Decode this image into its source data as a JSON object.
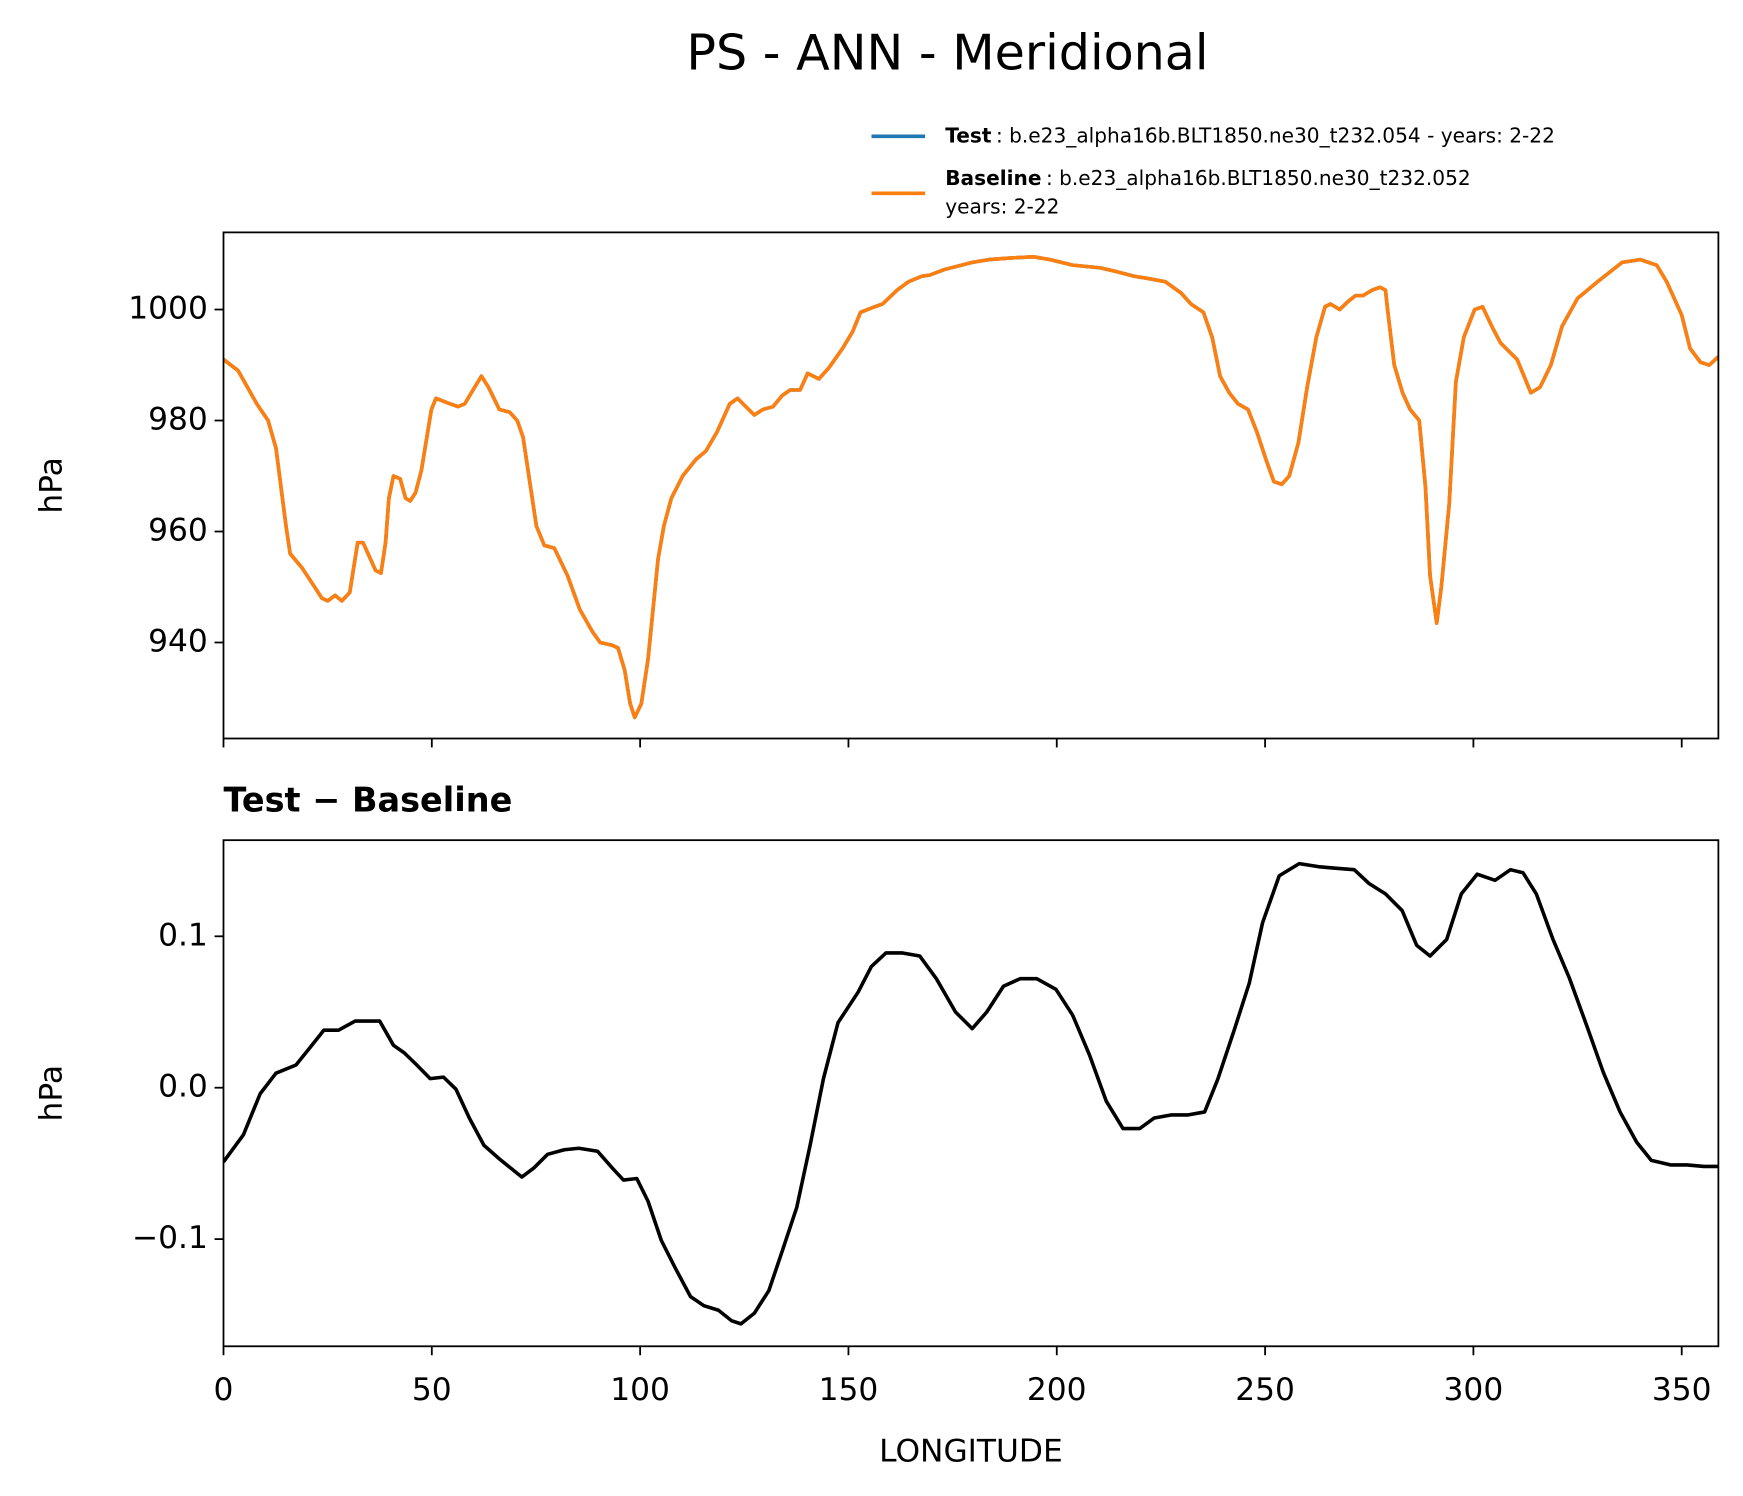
{
  "chart_data": [
    {
      "type": "line",
      "title": "PS - ANN - Meridional",
      "ylabel": "hPa",
      "xlim": [
        0,
        358.8
      ],
      "ylim": [
        922.7,
        1013.9
      ],
      "yticks": [
        940,
        960,
        980,
        1000
      ],
      "legend": "upper right",
      "x": [
        0,
        3.5,
        8,
        10.7,
        12.6,
        15,
        16,
        18.8,
        21,
        23.6,
        25,
        26.8,
        28.4,
        30.3,
        32.2,
        33.5,
        36.5,
        37.8,
        38.9,
        39.7,
        40.8,
        42.4,
        43.7,
        44.8,
        46.1,
        47.5,
        49.9,
        51,
        54.4,
        56.3,
        57.9,
        60.3,
        61.9,
        63.6,
        66.2,
        68.7,
        70.5,
        71.9,
        73.7,
        75.1,
        77,
        79.4,
        82.6,
        85.5,
        88.5,
        90.4,
        93.3,
        94.7,
        96.3,
        97.6,
        98.7,
        100.3,
        101.9,
        104.3,
        105.7,
        107.5,
        110.2,
        113.4,
        115.8,
        118.5,
        121.5,
        123.4,
        124.7,
        127.4,
        129.5,
        131.9,
        134.1,
        136,
        138.4,
        140.2,
        142.9,
        145.3,
        148.6,
        151,
        152.9,
        156.3,
        158.2,
        161.7,
        164.4,
        167.6,
        169.5,
        173,
        175.6,
        179.7,
        183.7,
        189.1,
        194.4,
        198.4,
        203.8,
        210.5,
        214.5,
        218.6,
        222.6,
        226.1,
        229.8,
        232.2,
        235.2,
        237.3,
        239.2,
        241.4,
        243.5,
        245.9,
        248,
        250.2,
        252.1,
        254,
        255.8,
        258,
        260.1,
        262.3,
        264.4,
        265.7,
        267.9,
        270,
        271.7,
        273.5,
        275.7,
        277.6,
        278.9,
        279.4,
        281,
        283,
        284.8,
        287,
        288.5,
        289.6,
        291.2,
        292.3,
        294.2,
        295.8,
        297.7,
        300.3,
        302.2,
        304.4,
        306.5,
        310.5,
        313.8,
        316,
        318.6,
        321.3,
        325,
        329.8,
        335.7,
        340,
        344,
        346.4,
        350,
        352,
        354.5,
        356.6,
        358.8
      ],
      "series": [
        {
          "name": "Test",
          "description": [
            ": b.e23_alpha16b.BLT1850.ne30_t232.054 - years: 2-22"
          ],
          "color": "#1f77b4",
          "values": [
            991,
            989,
            983,
            980,
            975,
            961,
            956,
            953.5,
            951,
            948,
            947.5,
            948.5,
            947.5,
            949,
            958,
            958,
            953,
            952.5,
            958,
            966,
            970,
            969.5,
            966,
            965.5,
            967,
            971,
            982,
            984,
            983,
            982.5,
            983,
            986,
            988,
            986,
            982,
            981.5,
            980,
            977,
            968,
            961,
            957.5,
            957,
            952,
            946,
            942,
            940,
            939.5,
            939,
            935,
            929,
            926.5,
            929,
            937,
            955,
            961,
            966,
            970,
            973,
            974.5,
            978,
            983,
            984,
            983,
            981,
            982,
            982.5,
            984.5,
            985.5,
            985.5,
            988.5,
            987.5,
            989.5,
            993,
            996,
            999.5,
            1000.5,
            1001,
            1003.5,
            1005,
            1006,
            1006.2,
            1007.2,
            1007.7,
            1008.5,
            1009,
            1009.3,
            1009.5,
            1009,
            1008,
            1007.5,
            1006.8,
            1006,
            1005.5,
            1005,
            1003,
            1001,
            999.5,
            995,
            988,
            985,
            983,
            982,
            978,
            973,
            969,
            968.5,
            970,
            976,
            986,
            995,
            1000.5,
            1001,
            1000,
            1001.5,
            1002.5,
            1002.5,
            1003.5,
            1004,
            1003.5,
            1000,
            990,
            985,
            982,
            980,
            968,
            952,
            943.5,
            950,
            965,
            987,
            995,
            1000,
            1000.5,
            997,
            994,
            991,
            985,
            986,
            990,
            997,
            1002,
            1005,
            1008.5,
            1009,
            1008,
            1005,
            999,
            993,
            990.5,
            990,
            991.5
          ]
        },
        {
          "name": "Baseline",
          "description": [
            ": b.e23_alpha16b.BLT1850.ne30_t232.052",
            "years: 2-22"
          ],
          "color": "#ff7f0e",
          "values": [
            991,
            989,
            983,
            980,
            975,
            961,
            956,
            953.5,
            951,
            948,
            947.5,
            948.5,
            947.5,
            949,
            958,
            958,
            953,
            952.5,
            958,
            966,
            970,
            969.5,
            966,
            965.5,
            967,
            971,
            982,
            984,
            983,
            982.5,
            983,
            986,
            988,
            986,
            982,
            981.5,
            980,
            977,
            968,
            961,
            957.5,
            957,
            952,
            946,
            942,
            940,
            939.5,
            939,
            935,
            929,
            926.5,
            929,
            937,
            955,
            961,
            966,
            970,
            973,
            974.5,
            978,
            983,
            984,
            983,
            981,
            982,
            982.5,
            984.5,
            985.5,
            985.5,
            988.5,
            987.5,
            989.5,
            993,
            996,
            999.5,
            1000.5,
            1001,
            1003.5,
            1005,
            1006,
            1006.2,
            1007.2,
            1007.7,
            1008.5,
            1009,
            1009.3,
            1009.5,
            1009,
            1008,
            1007.5,
            1006.8,
            1006,
            1005.5,
            1005,
            1003,
            1001,
            999.5,
            995,
            988,
            985,
            983,
            982,
            978,
            973,
            969,
            968.5,
            970,
            976,
            986,
            995,
            1000.5,
            1001,
            1000,
            1001.5,
            1002.5,
            1002.5,
            1003.5,
            1004,
            1003.5,
            1000,
            990,
            985,
            982,
            980,
            968,
            952,
            943.5,
            950,
            965,
            987,
            995,
            1000,
            1000.5,
            997,
            994,
            991,
            985,
            986,
            990,
            997,
            1002,
            1005,
            1008.5,
            1009,
            1008,
            1005,
            999,
            993,
            990.5,
            990,
            991.5
          ]
        }
      ]
    },
    {
      "type": "line",
      "title": "Test − Baseline",
      "xlabel": "LONGITUDE",
      "ylabel": "hPa",
      "xlim": [
        0,
        358.8
      ],
      "ylim": [
        -0.1708,
        0.1635
      ],
      "xticks": [
        0,
        50,
        100,
        150,
        200,
        250,
        300,
        350
      ],
      "yticks": [
        {
          "value": -0.1,
          "label": "−0.1"
        },
        {
          "value": 0,
          "label": "0.0"
        },
        0.1
      ],
      "x": [
        0,
        4.8,
        8.8,
        12.6,
        17.4,
        20.9,
        24.1,
        27.6,
        31.6,
        34.9,
        37.5,
        40.8,
        43.4,
        46.4,
        49.6,
        52.8,
        55.8,
        59,
        62.5,
        66.2,
        71.6,
        74.5,
        77.8,
        81.8,
        85.3,
        89.8,
        93.3,
        96,
        99.2,
        101.9,
        105.1,
        108.6,
        112.1,
        115.3,
        118.8,
        122,
        124.2,
        127.4,
        130.9,
        134.1,
        137.6,
        140.8,
        144,
        147.5,
        152.3,
        155.5,
        159,
        163,
        167.1,
        171.1,
        175.7,
        179.7,
        183.2,
        187.2,
        191.2,
        195.2,
        199.8,
        203.8,
        207.8,
        211.9,
        215.9,
        219.9,
        223.4,
        227.4,
        231.4,
        235.5,
        238.7,
        242.7,
        246.2,
        249.4,
        253.4,
        258.2,
        262.8,
        266.8,
        271.4,
        274.9,
        278.9,
        282.9,
        286.4,
        289.6,
        293.6,
        297.1,
        300.9,
        305.2,
        308.9,
        311.9,
        315.1,
        319.1,
        323.1,
        327.2,
        331.2,
        335.2,
        339.2,
        342.7,
        347.3,
        351.3,
        355.3,
        358.8
      ],
      "series": [
        {
          "color": "#000000",
          "values": [
            -0.049,
            -0.031,
            -0.004,
            0.0096,
            0.015,
            0.027,
            0.038,
            0.038,
            0.044,
            0.044,
            0.044,
            0.028,
            0.023,
            0.015,
            0.006,
            0.007,
            -0.001,
            -0.02,
            -0.038,
            -0.047,
            -0.059,
            -0.053,
            -0.044,
            -0.041,
            -0.04,
            -0.042,
            -0.053,
            -0.061,
            -0.06,
            -0.075,
            -0.101,
            -0.12,
            -0.138,
            -0.144,
            -0.147,
            -0.154,
            -0.156,
            -0.149,
            -0.134,
            -0.108,
            -0.079,
            -0.038,
            0.006,
            0.043,
            0.063,
            0.08,
            0.089,
            0.089,
            0.087,
            0.072,
            0.05,
            0.039,
            0.05,
            0.067,
            0.072,
            0.072,
            0.065,
            0.048,
            0.022,
            -0.009,
            -0.027,
            -0.027,
            -0.02,
            -0.018,
            -0.018,
            -0.016,
            0.006,
            0.039,
            0.069,
            0.109,
            0.14,
            0.148,
            0.146,
            0.145,
            0.144,
            0.135,
            0.128,
            0.117,
            0.094,
            0.087,
            0.098,
            0.128,
            0.141,
            0.137,
            0.144,
            0.142,
            0.128,
            0.098,
            0.072,
            0.041,
            0.01,
            -0.016,
            -0.036,
            -0.048,
            -0.051,
            -0.051,
            -0.052,
            -0.052
          ]
        }
      ]
    }
  ]
}
